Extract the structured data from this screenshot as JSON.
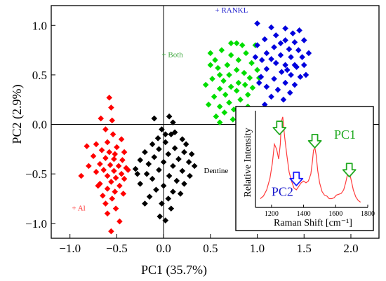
{
  "colors": {
    "al": "#ff0000",
    "dentine": "#000000",
    "both": "#00dd00",
    "rankl": "#0000dd",
    "spectrum": "#ff3b3b",
    "arrow_green": "#22aa22",
    "arrow_blue": "#1a1aff",
    "label_both": "#44aa44",
    "label_rankl": "#1a1acc",
    "label_al": "#ff3333",
    "label_pc1": "#22aa22",
    "label_pc2": "#1a1acc"
  },
  "chart_data": [
    {
      "type": "scatter",
      "title": "",
      "xlabel": "PC1 (35.7%)",
      "ylabel": "PC2 (2.9%)",
      "xlim": [
        -1.2,
        2.3
      ],
      "ylim": [
        -1.15,
        1.2
      ],
      "xticks": [
        -1.0,
        -0.5,
        0.0,
        0.5,
        1.0,
        1.5,
        2.0
      ],
      "xtick_labels": [
        "−1.0",
        "−0.5",
        "0.0",
        "0.5",
        "1.0",
        "1.5",
        "2.0"
      ],
      "yticks": [
        -1.0,
        -0.5,
        0.0,
        0.5,
        1.0
      ],
      "ytick_labels": [
        "−1.0",
        "−0.5",
        "0.0",
        "0.5",
        "1.0"
      ],
      "marker": "diamond",
      "annotations": [
        {
          "text": "+ RANKL",
          "x": 0.55,
          "y": 1.13,
          "series": "rankl"
        },
        {
          "text": "+ Both",
          "x": -0.02,
          "y": 0.68,
          "series": "both"
        },
        {
          "text": "Dentine",
          "x": 0.43,
          "y": -0.49,
          "series": "dentine"
        },
        {
          "text": "+ Al",
          "x": -0.98,
          "y": -0.87,
          "series": "al"
        }
      ],
      "series": [
        {
          "key": "al",
          "points": [
            [
              -0.58,
              0.27
            ],
            [
              -0.56,
              0.17
            ],
            [
              -0.67,
              0.06
            ],
            [
              -0.55,
              0.04
            ],
            [
              -0.62,
              -0.05
            ],
            [
              -0.54,
              -0.1
            ],
            [
              -0.45,
              -0.15
            ],
            [
              -0.6,
              -0.18
            ],
            [
              -0.72,
              -0.2
            ],
            [
              -0.82,
              -0.22
            ],
            [
              -0.5,
              -0.23
            ],
            [
              -0.66,
              -0.26
            ],
            [
              -0.58,
              -0.28
            ],
            [
              -0.42,
              -0.28
            ],
            [
              -0.75,
              -0.32
            ],
            [
              -0.62,
              -0.34
            ],
            [
              -0.53,
              -0.35
            ],
            [
              -0.44,
              -0.36
            ],
            [
              -0.68,
              -0.4
            ],
            [
              -0.57,
              -0.41
            ],
            [
              -0.48,
              -0.42
            ],
            [
              -0.4,
              -0.44
            ],
            [
              -0.64,
              -0.46
            ],
            [
              -0.53,
              -0.47
            ],
            [
              -0.72,
              -0.48
            ],
            [
              -0.45,
              -0.5
            ],
            [
              -0.6,
              -0.52
            ],
            [
              -0.51,
              -0.54
            ],
            [
              -0.42,
              -0.55
            ],
            [
              -0.56,
              -0.58
            ],
            [
              -0.68,
              -0.6
            ],
            [
              -0.47,
              -0.62
            ],
            [
              -0.6,
              -0.65
            ],
            [
              -0.52,
              -0.68
            ],
            [
              -0.43,
              -0.7
            ],
            [
              -0.65,
              -0.72
            ],
            [
              -0.55,
              -0.75
            ],
            [
              -0.62,
              -0.8
            ],
            [
              -0.51,
              -0.85
            ],
            [
              -0.6,
              -0.9
            ],
            [
              -0.88,
              -0.52
            ],
            [
              -0.56,
              -1.08
            ],
            [
              -0.8,
              -0.42
            ],
            [
              -0.47,
              -0.98
            ],
            [
              -0.7,
              -0.62
            ],
            [
              -0.38,
              -0.46
            ],
            [
              -0.52,
              -0.3
            ]
          ]
        },
        {
          "key": "dentine",
          "points": [
            [
              -0.1,
              0.06
            ],
            [
              0.06,
              0.08
            ],
            [
              0.1,
              0.02
            ],
            [
              -0.02,
              -0.05
            ],
            [
              0.08,
              -0.1
            ],
            [
              0.2,
              -0.15
            ],
            [
              0.02,
              -0.18
            ],
            [
              -0.12,
              -0.2
            ],
            [
              -0.05,
              -0.25
            ],
            [
              0.12,
              -0.24
            ],
            [
              0.22,
              -0.28
            ],
            [
              -0.2,
              -0.28
            ],
            [
              0.3,
              -0.3
            ],
            [
              0.05,
              -0.3
            ],
            [
              -0.1,
              -0.33
            ],
            [
              0.16,
              -0.35
            ],
            [
              -0.25,
              -0.36
            ],
            [
              0.27,
              -0.38
            ],
            [
              0.0,
              -0.38
            ],
            [
              -0.16,
              -0.4
            ],
            [
              0.1,
              -0.42
            ],
            [
              0.33,
              -0.42
            ],
            [
              -0.3,
              -0.45
            ],
            [
              -0.05,
              -0.46
            ],
            [
              0.2,
              -0.47
            ],
            [
              -0.18,
              -0.5
            ],
            [
              0.06,
              -0.52
            ],
            [
              0.28,
              -0.52
            ],
            [
              -0.12,
              -0.55
            ],
            [
              0.14,
              -0.57
            ],
            [
              -0.25,
              -0.6
            ],
            [
              0.0,
              -0.62
            ],
            [
              0.22,
              -0.6
            ],
            [
              -0.08,
              -0.66
            ],
            [
              0.1,
              -0.68
            ],
            [
              -0.15,
              -0.73
            ],
            [
              0.05,
              -0.75
            ],
            [
              -0.02,
              -0.8
            ],
            [
              0.08,
              -0.85
            ],
            [
              -0.04,
              -0.93
            ],
            [
              0.02,
              -0.97
            ],
            [
              -0.2,
              -0.8
            ],
            [
              0.18,
              -0.7
            ],
            [
              -0.28,
              -0.5
            ],
            [
              0.12,
              -0.08
            ],
            [
              0.02,
              -0.1
            ],
            [
              0.24,
              -0.2
            ],
            [
              -0.06,
              -0.14
            ]
          ]
        },
        {
          "key": "both",
          "points": [
            [
              0.78,
              0.82
            ],
            [
              0.98,
              0.8
            ],
            [
              0.5,
              0.72
            ],
            [
              0.62,
              0.75
            ],
            [
              0.72,
              0.7
            ],
            [
              0.88,
              0.72
            ],
            [
              0.55,
              0.65
            ],
            [
              0.8,
              0.65
            ],
            [
              0.68,
              0.6
            ],
            [
              0.94,
              0.62
            ],
            [
              0.58,
              0.57
            ],
            [
              0.78,
              0.55
            ],
            [
              0.86,
              0.52
            ],
            [
              1.0,
              0.55
            ],
            [
              0.6,
              0.5
            ],
            [
              0.7,
              0.5
            ],
            [
              0.92,
              0.47
            ],
            [
              0.52,
              0.46
            ],
            [
              0.64,
              0.44
            ],
            [
              0.8,
              0.42
            ],
            [
              0.87,
              0.4
            ],
            [
              0.72,
              0.38
            ],
            [
              0.6,
              0.36
            ],
            [
              0.95,
              0.37
            ],
            [
              0.78,
              0.34
            ],
            [
              0.66,
              0.3
            ],
            [
              0.54,
              0.28
            ],
            [
              0.9,
              0.3
            ],
            [
              0.82,
              0.25
            ],
            [
              0.7,
              0.22
            ],
            [
              0.6,
              0.18
            ],
            [
              0.75,
              0.15
            ],
            [
              0.9,
              0.18
            ],
            [
              0.65,
              0.12
            ],
            [
              0.48,
              0.2
            ],
            [
              0.56,
              0.08
            ],
            [
              0.74,
              0.05
            ],
            [
              0.68,
              0.6
            ],
            [
              0.84,
              0.8
            ],
            [
              1.02,
              0.47
            ],
            [
              0.45,
              0.4
            ],
            [
              0.5,
              0.6
            ],
            [
              0.6,
              0.02
            ],
            [
              0.8,
              0.1
            ],
            [
              0.72,
              0.82
            ]
          ]
        },
        {
          "key": "rankl",
          "points": [
            [
              1.0,
              1.02
            ],
            [
              1.15,
              0.98
            ],
            [
              1.3,
              0.97
            ],
            [
              1.38,
              0.92
            ],
            [
              1.45,
              0.95
            ],
            [
              1.2,
              0.9
            ],
            [
              1.08,
              0.86
            ],
            [
              1.3,
              0.85
            ],
            [
              1.4,
              0.83
            ],
            [
              1.5,
              0.85
            ],
            [
              1.0,
              0.8
            ],
            [
              1.18,
              0.78
            ],
            [
              1.34,
              0.76
            ],
            [
              1.44,
              0.75
            ],
            [
              1.1,
              0.72
            ],
            [
              1.25,
              0.7
            ],
            [
              1.36,
              0.68
            ],
            [
              1.48,
              0.68
            ],
            [
              1.05,
              0.65
            ],
            [
              1.2,
              0.62
            ],
            [
              1.3,
              0.6
            ],
            [
              1.42,
              0.58
            ],
            [
              1.5,
              0.6
            ],
            [
              1.1,
              0.56
            ],
            [
              1.26,
              0.53
            ],
            [
              1.36,
              0.5
            ],
            [
              1.46,
              0.48
            ],
            [
              1.04,
              0.48
            ],
            [
              1.18,
              0.46
            ],
            [
              1.3,
              0.42
            ],
            [
              1.4,
              0.4
            ],
            [
              1.1,
              0.38
            ],
            [
              1.22,
              0.35
            ],
            [
              1.35,
              0.32
            ],
            [
              1.15,
              0.28
            ],
            [
              1.28,
              0.25
            ],
            [
              1.08,
              0.2
            ],
            [
              1.4,
              0.6
            ],
            [
              1.55,
              0.72
            ],
            [
              0.98,
              0.68
            ],
            [
              1.25,
              0.82
            ],
            [
              1.32,
              0.55
            ],
            [
              1.52,
              0.5
            ],
            [
              1.02,
              0.42
            ],
            [
              1.15,
              0.66
            ]
          ]
        }
      ]
    },
    {
      "type": "line",
      "title": "",
      "xlabel": "Raman Shift [cm⁻¹]",
      "ylabel": "Relative Intensity",
      "xlim": [
        1100,
        1800
      ],
      "xticks": [
        1200,
        1400,
        1600,
        1800
      ],
      "xtick_labels": [
        "1200",
        "1400",
        "1600",
        "1800"
      ],
      "ylim": [
        0,
        1.1
      ],
      "annotations": [
        {
          "text": "PC1",
          "x": 1590,
          "y": 0.78,
          "color": "label_pc1"
        },
        {
          "text": "PC2",
          "x": 1200,
          "y": 0.13,
          "color": "label_pc2"
        }
      ],
      "arrows": [
        {
          "x": 1250,
          "y": 0.98,
          "color": "arrow_green"
        },
        {
          "x": 1470,
          "y": 0.83,
          "color": "arrow_green"
        },
        {
          "x": 1685,
          "y": 0.5,
          "color": "arrow_green"
        },
        {
          "x": 1355,
          "y": 0.4,
          "color": "arrow_blue"
        }
      ],
      "series": [
        {
          "x": [
            1130,
            1150,
            1170,
            1190,
            1205,
            1218,
            1232,
            1245,
            1255,
            1262,
            1270,
            1282,
            1295,
            1310,
            1325,
            1340,
            1355,
            1370,
            1385,
            1400,
            1415,
            1430,
            1445,
            1455,
            1462,
            1470,
            1478,
            1488,
            1500,
            1515,
            1530,
            1545,
            1560,
            1575,
            1590,
            1605,
            1620,
            1635,
            1650,
            1662,
            1672,
            1680,
            1688,
            1698,
            1710,
            1725,
            1740,
            1755
          ],
          "y": [
            0.1,
            0.13,
            0.2,
            0.33,
            0.5,
            0.72,
            0.66,
            0.55,
            0.72,
            0.98,
            1.03,
            0.8,
            0.6,
            0.4,
            0.3,
            0.22,
            0.2,
            0.24,
            0.28,
            0.3,
            0.28,
            0.3,
            0.38,
            0.52,
            0.65,
            0.68,
            0.6,
            0.42,
            0.28,
            0.18,
            0.14,
            0.13,
            0.1,
            0.1,
            0.11,
            0.14,
            0.15,
            0.16,
            0.2,
            0.28,
            0.36,
            0.4,
            0.38,
            0.3,
            0.2,
            0.12,
            0.08,
            0.06
          ]
        }
      ]
    }
  ]
}
